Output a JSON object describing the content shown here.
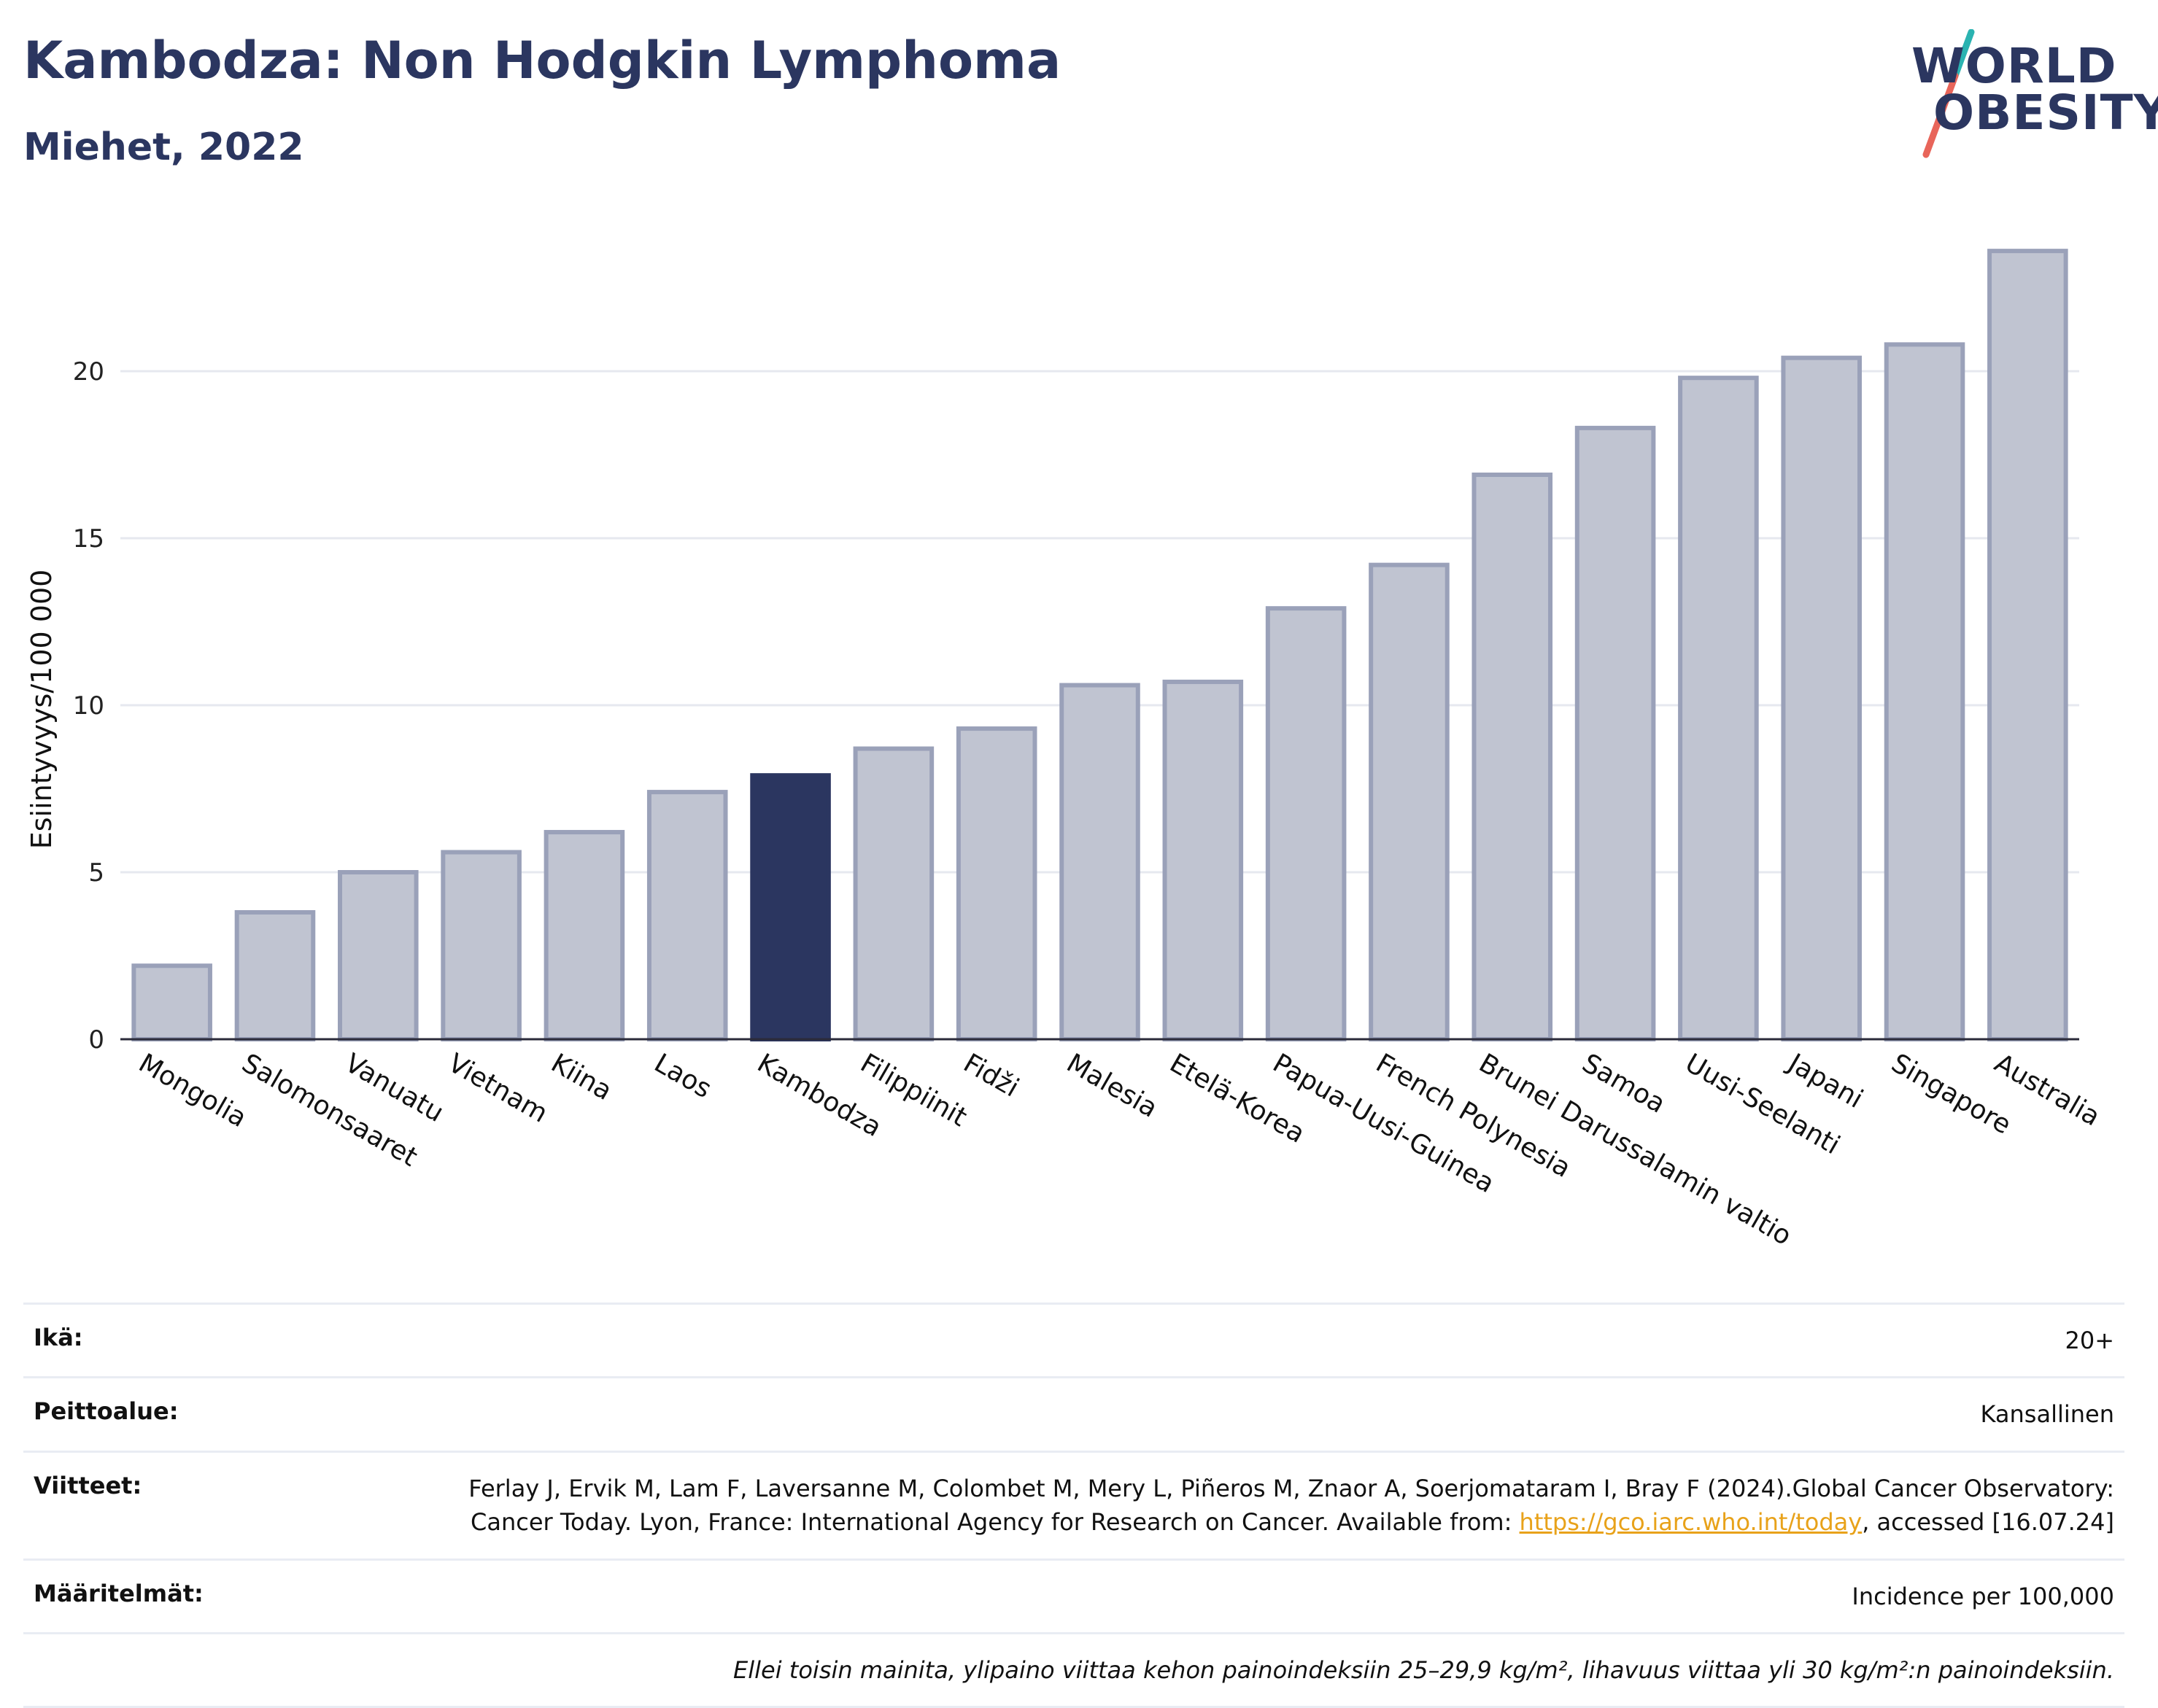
{
  "header": {
    "title": "Kambodza: Non Hodgkin Lymphoma",
    "subtitle": "Miehet, 2022"
  },
  "logo": {
    "line1": "WORLD",
    "line2": "OBESITY",
    "colors": {
      "text": "#2b3660",
      "slash_top": "#2bb3b1",
      "slash_bottom": "#e8655a"
    }
  },
  "chart_data": {
    "type": "bar",
    "ylabel": "Esiintyvyys/100 000",
    "ylim": [
      0,
      25
    ],
    "yticks": [
      0,
      5,
      10,
      15,
      20
    ],
    "grid": true,
    "highlight": "Kambodza",
    "colors": {
      "bar": "#c0c4d1",
      "bar_border": "#9aa1b9",
      "highlight": "#2b3660"
    },
    "categories": [
      "Mongolia",
      "Salomonsaaret",
      "Vanuatu",
      "Vietnam",
      "Kiina",
      "Laos",
      "Kambodza",
      "Filippiinit",
      "Fidži",
      "Malesia",
      "Etelä-Korea",
      "Papua-Uusi-Guinea",
      "French Polynesia",
      "Brunei Darussalamin valtio",
      "Samoa",
      "Uusi-Seelanti",
      "Japani",
      "Singapore",
      "Australia"
    ],
    "values": [
      2.2,
      3.8,
      5.0,
      5.6,
      6.2,
      7.4,
      7.9,
      8.7,
      9.3,
      10.6,
      10.7,
      12.9,
      14.2,
      16.9,
      18.3,
      19.8,
      20.4,
      20.8,
      23.6
    ]
  },
  "info": {
    "rows": [
      {
        "key": "Ikä:",
        "value": "20+"
      },
      {
        "key": "Peittoalue:",
        "value": "Kansallinen"
      },
      {
        "key": "Viitteet:",
        "value_pre": "Ferlay J, Ervik M, Lam F, Laversanne M, Colombet M, Mery L, Piñeros M, Znaor A, Soerjomataram I, Bray F (2024).Global Cancer Observatory: Cancer Today. Lyon, France: International Agency for Research on Cancer. Available from: ",
        "link": "https://gco.iarc.who.int/today",
        "value_post": ", accessed [16.07.24]"
      },
      {
        "key": "Määritelmät:",
        "value": "Incidence per 100,000"
      }
    ],
    "note": "Ellei toisin mainita, ylipaino viittaa kehon painoindeksiin 25–29,9 kg/m², lihavuus viittaa yli 30 kg/m²:n painoindeksiin."
  }
}
